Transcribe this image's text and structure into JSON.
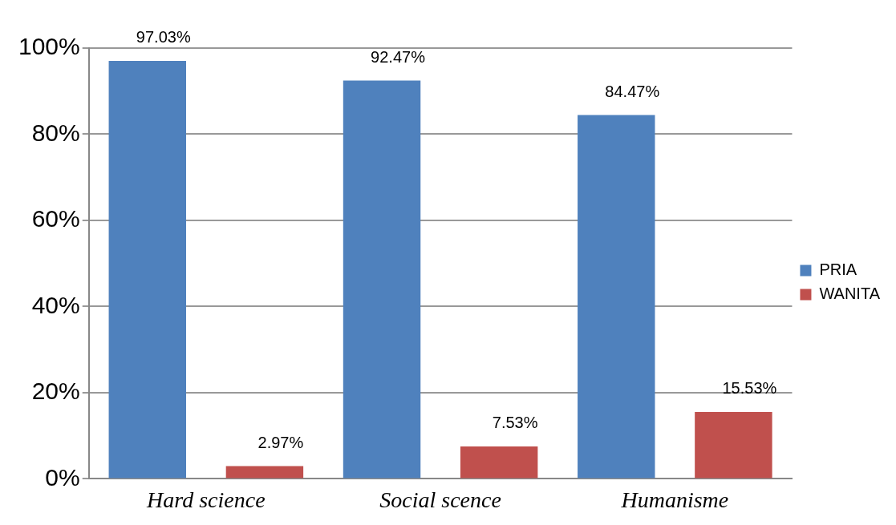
{
  "chart_data": {
    "type": "bar",
    "categories": [
      "Hard science",
      "Social scence",
      "Humanisme"
    ],
    "series": [
      {
        "name": "PRIA",
        "color": "#4f81bd",
        "values": [
          97.03,
          92.47,
          84.47
        ],
        "value_labels": [
          "97.03%",
          "92.47%",
          "84.47%"
        ]
      },
      {
        "name": "WANITA",
        "color": "#c0504d",
        "values": [
          2.97,
          7.53,
          15.53
        ],
        "value_labels": [
          "2.97%",
          "7.53%",
          "15.53%"
        ]
      }
    ],
    "ylim": [
      0,
      100
    ],
    "yticks": [
      {
        "value": 0,
        "label": "0%"
      },
      {
        "value": 20,
        "label": "20%"
      },
      {
        "value": 40,
        "label": "40%"
      },
      {
        "value": 60,
        "label": "60%"
      },
      {
        "value": 80,
        "label": "80%"
      },
      {
        "value": 100,
        "label": "100%"
      }
    ],
    "grid": "y",
    "legend": "right"
  }
}
